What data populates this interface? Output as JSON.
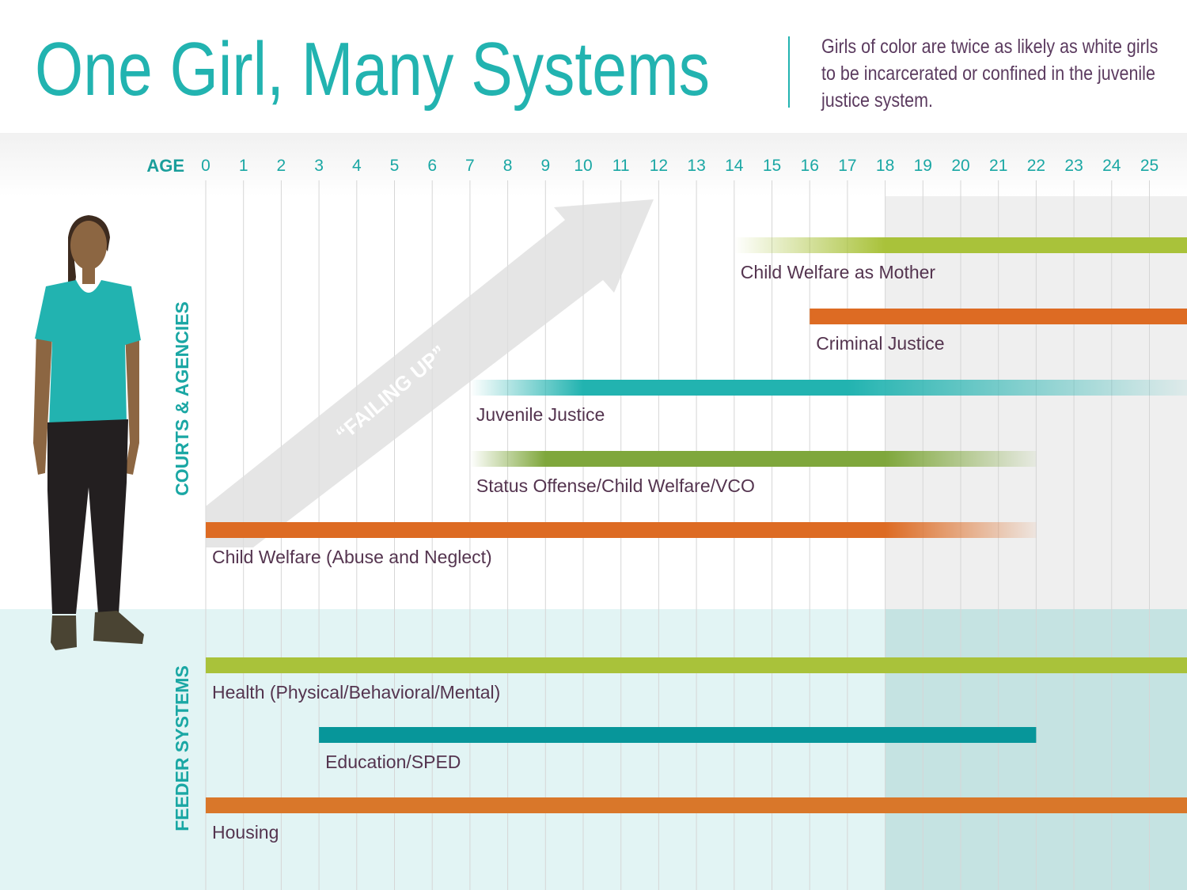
{
  "header": {
    "title": "One Girl, Many Systems",
    "subtitle": "Girls of color are twice as likely as white girls to be incarcerated or confined in the juvenile justice system."
  },
  "colors": {
    "teal": "#22b3b0",
    "dark_teal": "#07969a",
    "lime": "#a9c23a",
    "green": "#7fa73c",
    "orange": "#dd6b23",
    "bright_orange": "#f07c24",
    "housing_orange": "#d9772a",
    "purple_text": "#54344f",
    "feeder_background": "#e2f4f4",
    "adult_shade_gray": "#efefef",
    "adult_shade_teal": "#c5e3e2"
  },
  "chart_data": {
    "type": "timeline",
    "xlabel": "AGE",
    "x_ticks": [
      0,
      1,
      2,
      3,
      4,
      5,
      6,
      7,
      8,
      9,
      10,
      11,
      12,
      13,
      14,
      15,
      16,
      17,
      18,
      19,
      20,
      21,
      22,
      23,
      24,
      25
    ],
    "xlim": [
      0,
      25
    ],
    "shaded_from_age": 18,
    "arrow_annotation": "“FAILING UP”",
    "sections": [
      {
        "name": "COURTS & AGENCIES",
        "bars": [
          {
            "label": "Child Welfare as Mother",
            "start": 14,
            "end": 25,
            "solid_start": 18,
            "solid_end": 25,
            "color": "lime"
          },
          {
            "label": "Criminal Justice",
            "start": 16,
            "end": 25,
            "solid_start": 16,
            "solid_end": 25,
            "color": "orange"
          },
          {
            "label": "Juvenile Justice",
            "start": 7,
            "end": 25,
            "solid_start": 10,
            "solid_end": 17,
            "color": "teal"
          },
          {
            "label": "Status Offense/Child Welfare/VCO",
            "start": 7,
            "end": 22,
            "solid_start": 9,
            "solid_end": 18,
            "color": "green"
          },
          {
            "label": "Child Welfare (Abuse and Neglect)",
            "start": 0,
            "end": 22,
            "solid_start": 0,
            "solid_end": 18,
            "color": "orange"
          }
        ]
      },
      {
        "name": "FEEDER SYSTEMS",
        "bars": [
          {
            "label": "Health  (Physical/Behavioral/Mental)",
            "start": 0,
            "end": 25,
            "solid_start": 0,
            "solid_end": 25,
            "color": "lime"
          },
          {
            "label": "Education/SPED",
            "start": 3,
            "end": 22,
            "solid_start": 3,
            "solid_end": 22,
            "color": "dark_teal"
          },
          {
            "label": "Housing",
            "start": 0,
            "end": 25,
            "solid_start": 0,
            "solid_end": 25,
            "color": "housing_orange"
          }
        ]
      }
    ]
  }
}
